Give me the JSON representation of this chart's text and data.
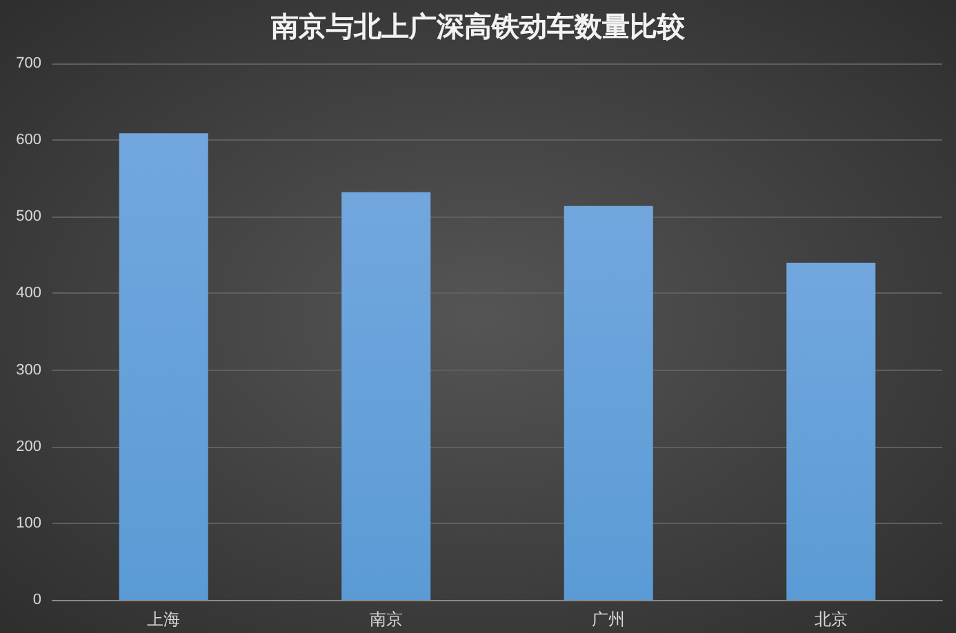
{
  "chart_data": {
    "type": "bar",
    "title": "南京与北上广深高铁动车数量比较",
    "categories": [
      "上海",
      "南京",
      "广州",
      "北京"
    ],
    "values": [
      609,
      532,
      514,
      440
    ],
    "color": "#5b9bd5",
    "ylim": [
      0,
      700
    ],
    "yticks": [
      0,
      100,
      200,
      300,
      400,
      500,
      600,
      700
    ],
    "grid": "y"
  }
}
